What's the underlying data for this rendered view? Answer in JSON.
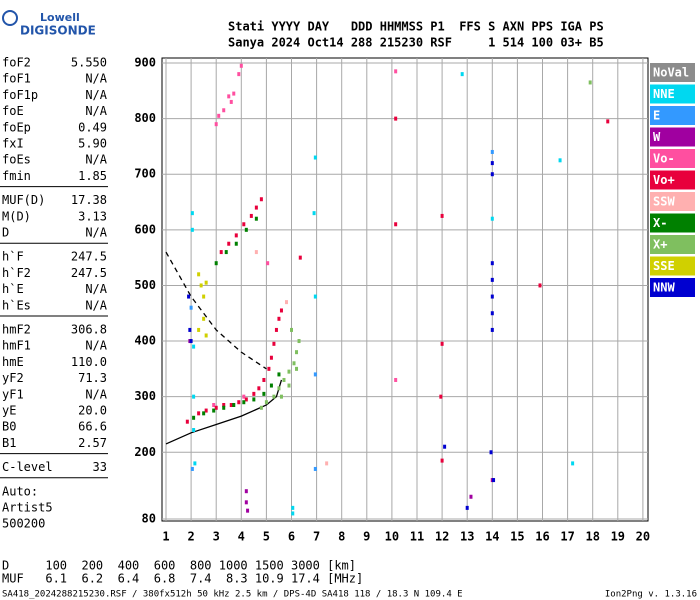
{
  "logo": {
    "line1": "Lowell",
    "line2": "DIGISONDE"
  },
  "header": {
    "line1": "Stati YYYY DAY   DDD HHMMSS P1  FFS S AXN PPS IGA PS",
    "line2": "Sanya 2024 Oct14 288 215230 RSF     1 514 100 03+ B5"
  },
  "params": [
    [
      [
        "foF2",
        "5.550"
      ],
      [
        "foF1",
        "N/A"
      ],
      [
        "foF1p",
        "N/A"
      ],
      [
        "foE",
        "N/A"
      ],
      [
        "foEp",
        "0.49"
      ],
      [
        "fxI",
        "5.90"
      ],
      [
        "foEs",
        "N/A"
      ],
      [
        "fmin",
        "1.85"
      ]
    ],
    [
      [
        "MUF(D)",
        "17.38"
      ],
      [
        "M(D)",
        "3.13"
      ],
      [
        "D",
        "N/A"
      ]
    ],
    [
      [
        "h`F",
        "247.5"
      ],
      [
        "h`F2",
        "247.5"
      ],
      [
        "h`E",
        "N/A"
      ],
      [
        "h`Es",
        "N/A"
      ]
    ],
    [
      [
        "hmF2",
        "306.8"
      ],
      [
        "hmF1",
        "N/A"
      ],
      [
        "hmE",
        "110.0"
      ],
      [
        "yF2",
        "71.3"
      ],
      [
        "yF1",
        "N/A"
      ],
      [
        "yE",
        "20.0"
      ],
      [
        "B0",
        "66.6"
      ],
      [
        "B1",
        "2.57"
      ]
    ],
    [
      [
        "C-level",
        "33"
      ]
    ]
  ],
  "auto": [
    "Auto:",
    "Artist5",
    "500200"
  ],
  "muf_table": [
    "D     100  200  400  600  800 1000 1500 3000 [km]",
    "MUF   6.1  6.2  6.4  6.8  7.4  8.3 10.9 17.4 [MHz]"
  ],
  "footer": {
    "left": "SA418_2024288215230.RSF / 380fx512h 50 kHz 2.5 km / DPS-4D SA418 118 / 18.3 N 109.4 E",
    "right": "Ion2Png v. 1.3.16"
  },
  "chart_data": {
    "type": "scatter",
    "xlim": [
      0.85,
      20.2
    ],
    "ylim": [
      80,
      900
    ],
    "xticks": [
      1,
      2,
      3,
      4,
      5,
      6,
      7,
      8,
      9,
      10,
      11,
      12,
      13,
      14,
      15,
      16,
      17,
      18,
      19,
      20
    ],
    "yticks": [
      80,
      200,
      300,
      400,
      500,
      600,
      700,
      800,
      900
    ],
    "grid": true,
    "series": [
      {
        "name": "NoVal",
        "color": "#8c8c8c",
        "x": [],
        "values": []
      },
      {
        "name": "NNE",
        "color": "#00d8f0",
        "x": [
          2.05,
          2.05,
          2.1,
          2.1,
          2.1,
          2.15,
          6.05,
          6.05,
          6.95,
          6.9,
          6.95,
          14.0,
          16.7,
          17.2,
          12.8
        ],
        "values": [
          630,
          600,
          390,
          300,
          240,
          180,
          100,
          90,
          730,
          630,
          480,
          620,
          725,
          180,
          880
        ]
      },
      {
        "name": "E",
        "color": "#3399ff",
        "x": [
          2.0,
          2.05,
          6.95,
          6.95,
          14.0
        ],
        "values": [
          460,
          170,
          340,
          170,
          740
        ]
      },
      {
        "name": "W",
        "color": "#a000a0",
        "x": [
          1.95,
          4.2,
          4.2,
          4.25,
          13.15,
          14.0
        ],
        "values": [
          400,
          130,
          110,
          95,
          120,
          150
        ]
      },
      {
        "name": "Vo-",
        "color": "#ff4fa0",
        "x": [
          3.0,
          3.1,
          3.3,
          3.5,
          3.6,
          3.7,
          3.9,
          4.0,
          10.15,
          10.15,
          5.05,
          2.9,
          4.1
        ],
        "values": [
          790,
          805,
          815,
          840,
          830,
          845,
          880,
          895,
          885,
          330,
          540,
          285,
          300
        ]
      },
      {
        "name": "Vo+",
        "color": "#e8003c",
        "x": [
          1.85,
          2.3,
          2.6,
          3.0,
          3.3,
          3.6,
          3.9,
          4.2,
          4.5,
          4.7,
          4.9,
          5.1,
          5.2,
          5.3,
          5.4,
          5.5,
          5.6,
          3.2,
          3.5,
          3.8,
          4.1,
          4.4,
          4.6,
          4.8,
          10.15,
          10.15,
          12.0,
          12.0,
          11.95,
          12.0,
          18.6,
          15.9,
          6.35
        ],
        "values": [
          255,
          270,
          275,
          280,
          285,
          285,
          290,
          295,
          305,
          315,
          330,
          350,
          370,
          395,
          420,
          440,
          455,
          560,
          575,
          590,
          610,
          625,
          640,
          655,
          610,
          800,
          625,
          395,
          300,
          185,
          795,
          500,
          550
        ]
      },
      {
        "name": "SSW",
        "color": "#ffb0b0",
        "x": [
          7.4,
          4.6,
          5.8
        ],
        "values": [
          180,
          560,
          470
        ]
      },
      {
        "name": "X-",
        "color": "#008000",
        "x": [
          2.1,
          2.5,
          2.9,
          3.3,
          3.7,
          4.1,
          4.5,
          4.9,
          5.2,
          5.5,
          3.0,
          3.4,
          3.8,
          4.2,
          4.6
        ],
        "values": [
          262,
          270,
          275,
          280,
          285,
          290,
          295,
          305,
          320,
          340,
          540,
          560,
          575,
          600,
          620
        ]
      },
      {
        "name": "X+",
        "color": "#7fbf5f",
        "x": [
          4.8,
          5.0,
          5.3,
          5.5,
          5.7,
          5.9,
          6.1,
          6.2,
          6.3,
          5.6,
          5.9,
          6.2,
          17.9,
          6.0
        ],
        "values": [
          280,
          290,
          300,
          315,
          330,
          345,
          360,
          380,
          400,
          300,
          320,
          350,
          865,
          420
        ]
      },
      {
        "name": "SSE",
        "color": "#d0d000",
        "x": [
          2.3,
          2.4,
          2.5,
          2.6,
          2.3,
          2.5,
          2.6
        ],
        "values": [
          520,
          500,
          480,
          505,
          420,
          440,
          410
        ]
      },
      {
        "name": "NNW",
        "color": "#0000d0",
        "x": [
          1.9,
          1.95,
          2.0,
          14.0,
          14.0,
          14.0,
          14.0,
          14.0,
          14.0,
          14.0,
          13.95,
          14.05,
          12.1,
          13.0
        ],
        "values": [
          480,
          420,
          400,
          720,
          700,
          540,
          510,
          480,
          450,
          420,
          200,
          150,
          210,
          100
        ]
      }
    ],
    "curves": [
      {
        "color": "#000000",
        "style": "solid",
        "x": [
          1,
          2,
          3,
          4,
          5,
          5.4,
          5.6
        ],
        "values": [
          215,
          235,
          250,
          265,
          285,
          300,
          330
        ]
      },
      {
        "color": "#000000",
        "style": "dashed",
        "x": [
          1,
          2,
          3,
          4,
          5
        ],
        "values": [
          560,
          480,
          420,
          380,
          350
        ]
      }
    ]
  }
}
